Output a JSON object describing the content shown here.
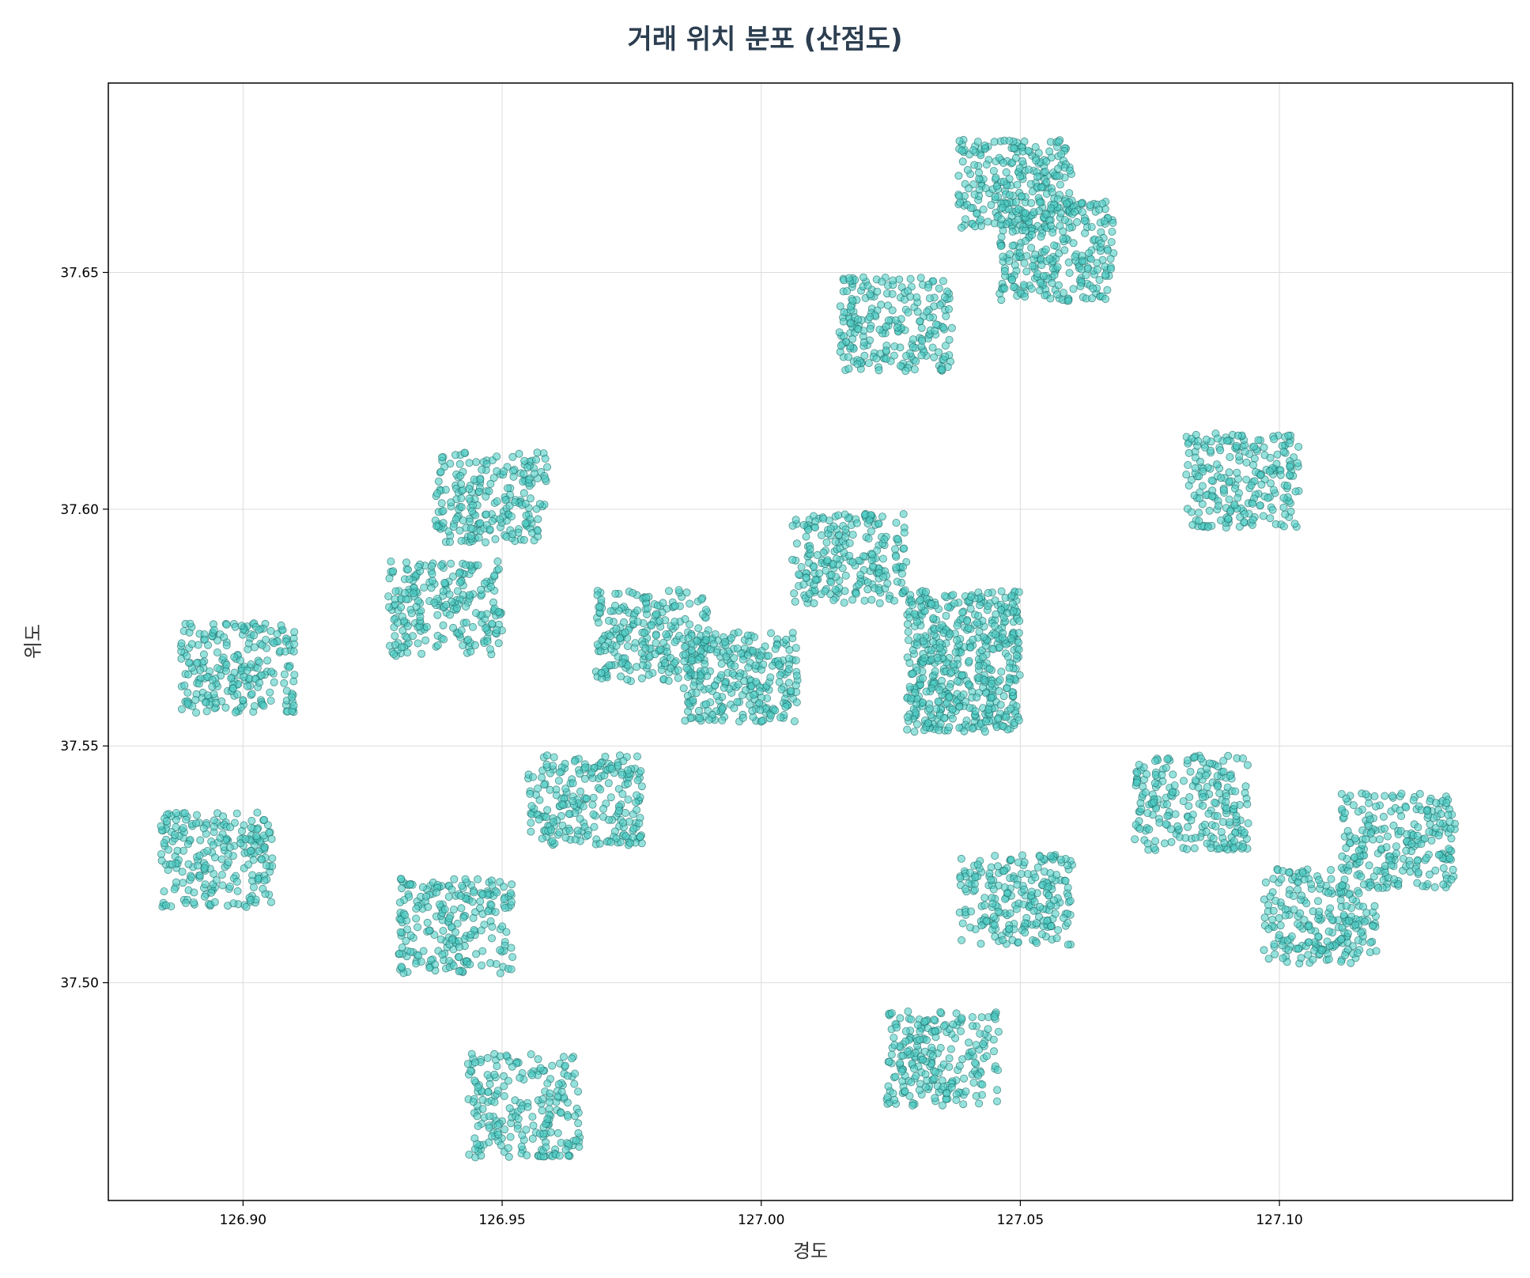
{
  "chart_data": {
    "type": "scatter",
    "title": "거래 위치 분포 (산점도)",
    "xlabel": "경도",
    "ylabel": "위도",
    "xlim": [
      126.874,
      127.145
    ],
    "ylim": [
      37.454,
      37.69
    ],
    "xticks": [
      126.9,
      126.95,
      127.0,
      127.05,
      127.1
    ],
    "xtick_labels": [
      "126.90",
      "126.95",
      "127.00",
      "127.05",
      "127.10"
    ],
    "yticks": [
      37.5,
      37.55,
      37.6,
      37.65
    ],
    "ytick_labels": [
      "37.50",
      "37.55",
      "37.60",
      "37.65"
    ],
    "grid": true,
    "marker_color": "#4ecdc4",
    "marker_edge_color": "#1e6b66",
    "clusters": [
      {
        "x": [
          126.937,
          126.959
        ],
        "y": [
          37.593,
          37.612
        ],
        "n": 220
      },
      {
        "x": [
          126.928,
          126.95
        ],
        "y": [
          37.569,
          37.589
        ],
        "n": 230
      },
      {
        "x": [
          126.888,
          126.91
        ],
        "y": [
          37.557,
          37.576
        ],
        "n": 230
      },
      {
        "x": [
          126.884,
          126.906
        ],
        "y": [
          37.516,
          37.536
        ],
        "n": 230
      },
      {
        "x": [
          126.93,
          126.952
        ],
        "y": [
          37.502,
          37.522
        ],
        "n": 230
      },
      {
        "x": [
          126.943,
          126.965
        ],
        "y": [
          37.463,
          37.485
        ],
        "n": 220
      },
      {
        "x": [
          126.955,
          126.977
        ],
        "y": [
          37.529,
          37.548
        ],
        "n": 230
      },
      {
        "x": [
          126.968,
          126.99
        ],
        "y": [
          37.563,
          37.583
        ],
        "n": 240
      },
      {
        "x": [
          126.985,
          127.007
        ],
        "y": [
          37.555,
          37.574
        ],
        "n": 260
      },
      {
        "x": [
          127.006,
          127.028
        ],
        "y": [
          37.58,
          37.599
        ],
        "n": 230
      },
      {
        "x": [
          127.015,
          127.037
        ],
        "y": [
          37.629,
          37.649
        ],
        "n": 230
      },
      {
        "x": [
          127.028,
          127.05
        ],
        "y": [
          37.553,
          37.583
        ],
        "n": 520
      },
      {
        "x": [
          127.024,
          127.046
        ],
        "y": [
          37.474,
          37.494
        ],
        "n": 230
      },
      {
        "x": [
          127.038,
          127.06
        ],
        "y": [
          37.508,
          37.527
        ],
        "n": 230
      },
      {
        "x": [
          127.038,
          127.06
        ],
        "y": [
          37.659,
          37.678
        ],
        "n": 260
      },
      {
        "x": [
          127.046,
          127.068
        ],
        "y": [
          37.644,
          37.665
        ],
        "n": 260
      },
      {
        "x": [
          127.072,
          127.094
        ],
        "y": [
          37.528,
          37.548
        ],
        "n": 230
      },
      {
        "x": [
          127.082,
          127.104
        ],
        "y": [
          37.596,
          37.616
        ],
        "n": 230
      },
      {
        "x": [
          127.097,
          127.119
        ],
        "y": [
          37.504,
          37.524
        ],
        "n": 230
      },
      {
        "x": [
          127.112,
          127.134
        ],
        "y": [
          37.52,
          37.54
        ],
        "n": 230
      }
    ]
  }
}
